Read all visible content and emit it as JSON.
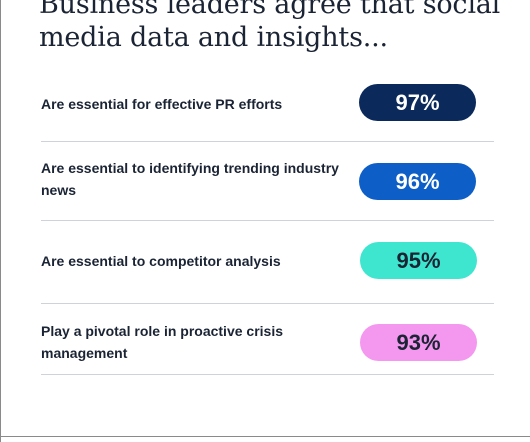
{
  "chart_data": {
    "type": "table",
    "title": "Business leaders agree that social media data and insights...",
    "categories": [
      "Are essential for effective PR efforts",
      "Are essential to identifying trending industry news",
      "Are essential to competitor analysis",
      "Play a pivotal role in proactive crisis management"
    ],
    "values": [
      97,
      96,
      95,
      93
    ],
    "value_labels": [
      "97%",
      "96%",
      "95%",
      "93%"
    ],
    "colors": [
      "#0b2a5b",
      "#0d5fc7",
      "#3ee6cf",
      "#f497ef"
    ],
    "text_colors": [
      "#ffffff",
      "#ffffff",
      "#1b2434",
      "#1b2434"
    ]
  }
}
